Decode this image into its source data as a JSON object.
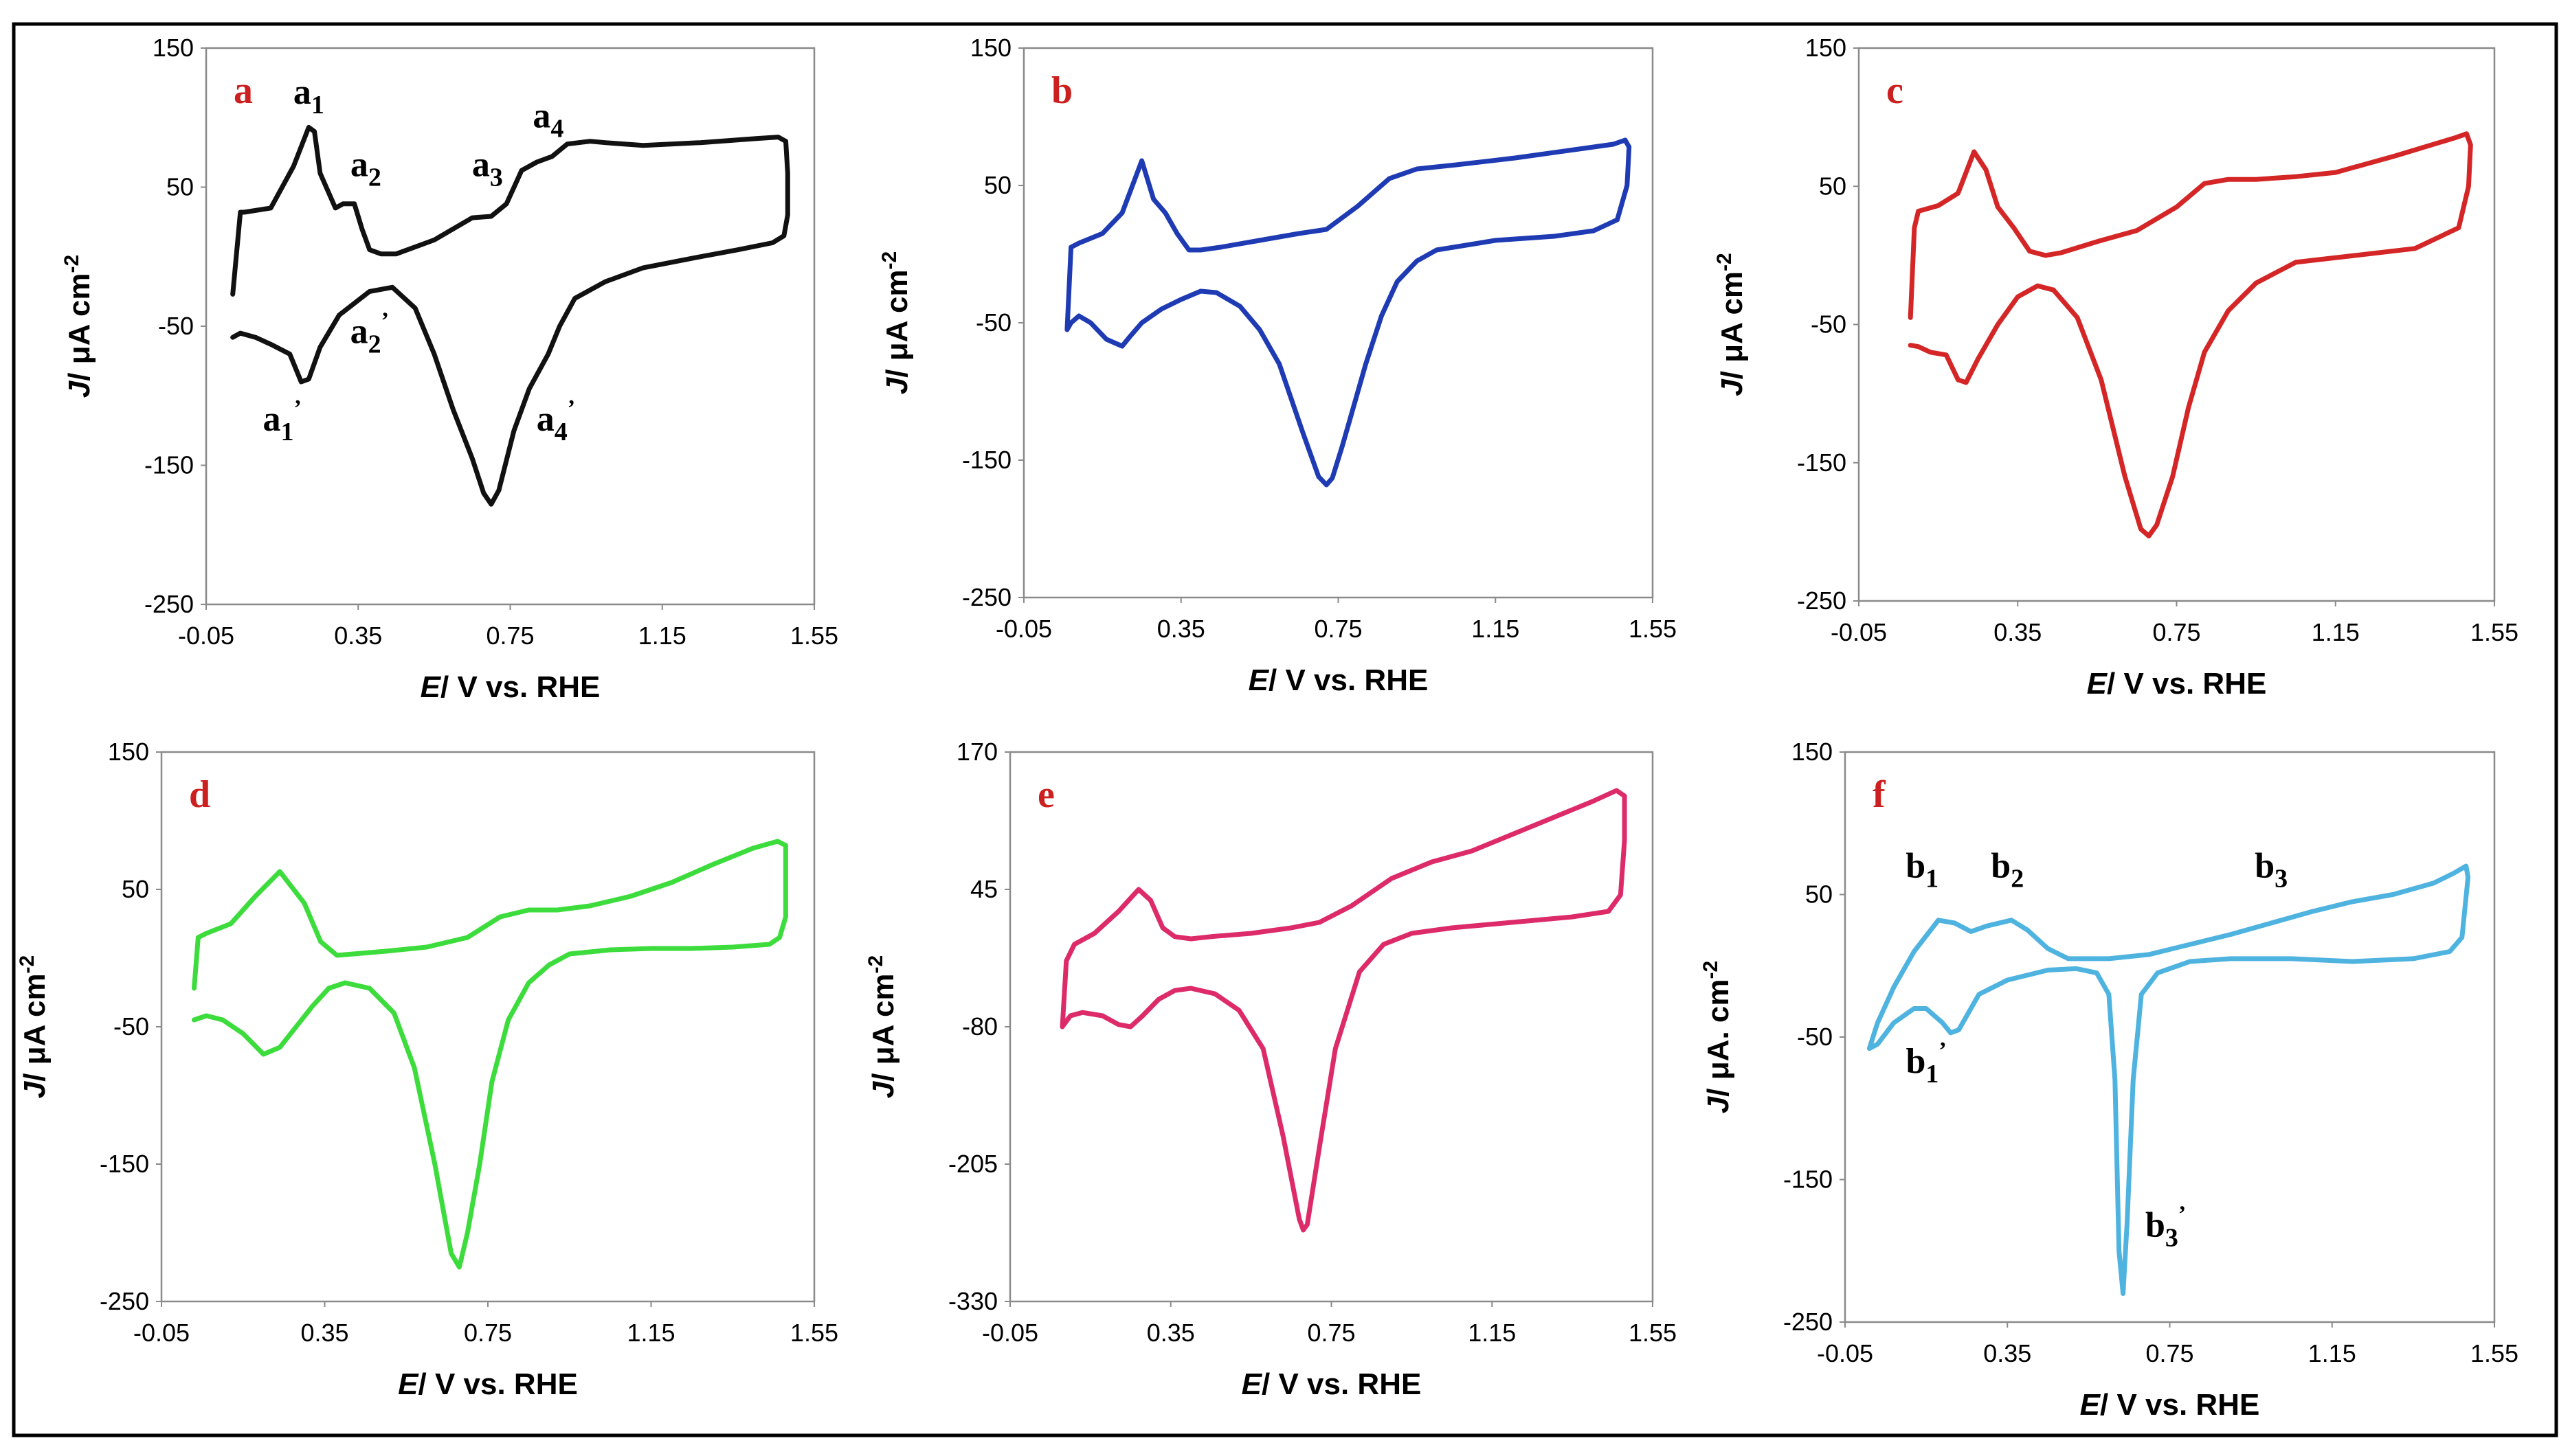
{
  "chart_data": [
    {
      "type": "line",
      "panel": "a",
      "color": "#111111",
      "xlabel_italic": "E",
      "xlabel_rest": "/ V vs. RHE",
      "ylabel_italic": "J",
      "ylabel_rest": "/ μA cm",
      "ylabel_sup": "-2",
      "xlim": [
        -0.05,
        1.55
      ],
      "ylim": [
        -250,
        150
      ],
      "x_ticks": [
        "-0.05",
        "0.35",
        "0.75",
        "1.15",
        "1.55"
      ],
      "y_ticks": [
        "150",
        "50",
        "-50",
        "-150",
        "-250"
      ],
      "annotations": [
        {
          "base": "a",
          "sub": "1",
          "sup": "",
          "x": 0.22,
          "y": 110
        },
        {
          "base": "a",
          "sub": "2",
          "sup": "",
          "x": 0.37,
          "y": 58
        },
        {
          "base": "a",
          "sub": "3",
          "sup": "",
          "x": 0.69,
          "y": 58
        },
        {
          "base": "a",
          "sub": "4",
          "sup": "",
          "x": 0.85,
          "y": 93
        },
        {
          "base": "a",
          "sub": "2",
          "sup": "’",
          "x": 0.38,
          "y": -62
        },
        {
          "base": "a",
          "sub": "1",
          "sup": "’",
          "x": 0.15,
          "y": -125
        },
        {
          "base": "a",
          "sub": "4",
          "sup": "’",
          "x": 0.87,
          "y": -125
        }
      ],
      "x": [
        0.02,
        0.04,
        0.05,
        0.12,
        0.18,
        0.22,
        0.235,
        0.25,
        0.29,
        0.31,
        0.34,
        0.36,
        0.38,
        0.41,
        0.45,
        0.55,
        0.65,
        0.7,
        0.74,
        0.78,
        0.82,
        0.86,
        0.9,
        0.96,
        1.0,
        1.1,
        1.25,
        1.4,
        1.455,
        1.475,
        1.48,
        1.48,
        1.47,
        1.44,
        1.35,
        1.25,
        1.1,
        1.0,
        0.92,
        0.88,
        0.85,
        0.8,
        0.76,
        0.72,
        0.7,
        0.68,
        0.65,
        0.6,
        0.55,
        0.5,
        0.44,
        0.38,
        0.3,
        0.25,
        0.22,
        0.2,
        0.17,
        0.12,
        0.08,
        0.04,
        0.02,
        0.02
      ],
      "y": [
        -27,
        32,
        32,
        35,
        65,
        93,
        90,
        60,
        35,
        38,
        38,
        20,
        5,
        2,
        2,
        12,
        28,
        29,
        38,
        62,
        68,
        72,
        81,
        83,
        82,
        80,
        82,
        85,
        86,
        83,
        60,
        30,
        15,
        10,
        5,
        0,
        -8,
        -18,
        -30,
        -50,
        -70,
        -95,
        -125,
        -168,
        -178,
        -170,
        -145,
        -110,
        -70,
        -37,
        -22,
        -25,
        -42,
        -65,
        -88,
        -90,
        -70,
        -63,
        -58,
        -55,
        -58,
        -58
      ]
    },
    {
      "type": "line",
      "panel": "b",
      "color": "#1f3bb3",
      "xlabel_italic": "E",
      "xlabel_rest": "/ V vs. RHE",
      "ylabel_italic": "J",
      "ylabel_rest": "/ μA cm",
      "ylabel_sup": "-2",
      "xlim": [
        -0.05,
        1.55
      ],
      "ylim": [
        -250,
        150
      ],
      "x_ticks": [
        "-0.05",
        "0.35",
        "0.75",
        "1.15",
        "1.55"
      ],
      "y_ticks": [
        "150",
        "50",
        "-50",
        "-150",
        "-250"
      ],
      "annotations": [],
      "x": [
        0.06,
        0.07,
        0.09,
        0.15,
        0.2,
        0.25,
        0.28,
        0.31,
        0.34,
        0.37,
        0.4,
        0.45,
        0.55,
        0.65,
        0.72,
        0.8,
        0.88,
        0.95,
        1.05,
        1.2,
        1.35,
        1.45,
        1.48,
        1.49,
        1.485,
        1.46,
        1.4,
        1.3,
        1.15,
        1.0,
        0.95,
        0.9,
        0.86,
        0.82,
        0.78,
        0.76,
        0.735,
        0.72,
        0.7,
        0.66,
        0.6,
        0.55,
        0.5,
        0.44,
        0.4,
        0.35,
        0.3,
        0.25,
        0.22,
        0.2,
        0.16,
        0.12,
        0.09,
        0.07,
        0.06
      ],
      "y": [
        -55,
        5,
        8,
        15,
        30,
        68,
        40,
        30,
        15,
        3,
        3,
        5,
        10,
        15,
        18,
        35,
        55,
        62,
        65,
        70,
        76,
        80,
        83,
        78,
        50,
        25,
        17,
        13,
        10,
        3,
        -5,
        -20,
        -45,
        -80,
        -120,
        -140,
        -163,
        -168,
        -162,
        -130,
        -80,
        -55,
        -38,
        -28,
        -27,
        -33,
        -40,
        -50,
        -60,
        -67,
        -62,
        -50,
        -45,
        -50,
        -55
      ]
    },
    {
      "type": "line",
      "panel": "c",
      "color": "#d42626",
      "xlabel_italic": "E",
      "xlabel_rest": "/ V vs. RHE",
      "ylabel_italic": "J",
      "ylabel_rest": "/ μA cm",
      "ylabel_sup": "-2",
      "xlim": [
        -0.05,
        1.55
      ],
      "ylim": [
        -250,
        150
      ],
      "x_ticks": [
        "-0.05",
        "0.35",
        "0.75",
        "1.15",
        "1.55"
      ],
      "y_ticks": [
        "150",
        "50",
        "-50",
        "-150",
        "-250"
      ],
      "annotations": [],
      "x": [
        0.08,
        0.09,
        0.1,
        0.15,
        0.2,
        0.24,
        0.27,
        0.3,
        0.34,
        0.38,
        0.42,
        0.46,
        0.55,
        0.65,
        0.75,
        0.82,
        0.88,
        0.95,
        1.05,
        1.15,
        1.3,
        1.45,
        1.48,
        1.49,
        1.485,
        1.46,
        1.35,
        1.2,
        1.05,
        0.95,
        0.88,
        0.82,
        0.78,
        0.74,
        0.7,
        0.68,
        0.66,
        0.62,
        0.56,
        0.5,
        0.44,
        0.4,
        0.35,
        0.3,
        0.25,
        0.22,
        0.2,
        0.17,
        0.13,
        0.1,
        0.08
      ],
      "y": [
        -45,
        20,
        32,
        36,
        45,
        75,
        62,
        35,
        20,
        3,
        0,
        2,
        10,
        18,
        35,
        52,
        55,
        55,
        57,
        60,
        72,
        85,
        88,
        80,
        50,
        20,
        5,
        0,
        -5,
        -20,
        -40,
        -70,
        -110,
        -160,
        -195,
        -203,
        -198,
        -160,
        -90,
        -45,
        -25,
        -22,
        -30,
        -50,
        -75,
        -92,
        -90,
        -72,
        -70,
        -66,
        -65
      ]
    },
    {
      "type": "line",
      "panel": "d",
      "color": "#3ddc3d",
      "xlabel_italic": "E",
      "xlabel_rest": "/ V vs. RHE",
      "ylabel_italic": "J",
      "ylabel_rest": "/ μA cm",
      "ylabel_sup": "-2",
      "xlim": [
        -0.05,
        1.55
      ],
      "ylim": [
        -250,
        150
      ],
      "x_ticks": [
        "-0.05",
        "0.35",
        "0.75",
        "1.15",
        "1.55"
      ],
      "y_ticks": [
        "150",
        "50",
        "-50",
        "-150",
        "-250"
      ],
      "annotations": [],
      "x": [
        0.03,
        0.04,
        0.06,
        0.12,
        0.18,
        0.24,
        0.3,
        0.34,
        0.38,
        0.42,
        0.5,
        0.6,
        0.7,
        0.78,
        0.85,
        0.92,
        1.0,
        1.1,
        1.2,
        1.3,
        1.4,
        1.46,
        1.48,
        1.48,
        1.465,
        1.44,
        1.35,
        1.25,
        1.15,
        1.05,
        0.95,
        0.9,
        0.85,
        0.8,
        0.76,
        0.73,
        0.7,
        0.68,
        0.66,
        0.62,
        0.57,
        0.52,
        0.46,
        0.4,
        0.36,
        0.32,
        0.28,
        0.24,
        0.2,
        0.15,
        0.1,
        0.06,
        0.03
      ],
      "y": [
        -22,
        15,
        18,
        25,
        45,
        63,
        40,
        12,
        2,
        3,
        5,
        8,
        15,
        30,
        35,
        35,
        38,
        45,
        55,
        68,
        80,
        85,
        82,
        30,
        15,
        10,
        8,
        7,
        7,
        6,
        3,
        -5,
        -18,
        -45,
        -90,
        -150,
        -200,
        -225,
        -215,
        -150,
        -80,
        -40,
        -22,
        -18,
        -22,
        -35,
        -50,
        -65,
        -70,
        -55,
        -45,
        -42,
        -45
      ]
    },
    {
      "type": "line",
      "panel": "e",
      "color": "#dd2b6a",
      "xlabel_italic": "E",
      "xlabel_rest": "/ V vs. RHE",
      "ylabel_italic": "J",
      "ylabel_rest": "/ μA cm",
      "ylabel_sup": "-2",
      "xlim": [
        -0.05,
        1.55
      ],
      "ylim": [
        -330,
        170
      ],
      "x_ticks": [
        "-0.05",
        "0.35",
        "0.75",
        "1.15",
        "1.55"
      ],
      "y_ticks": [
        "170",
        "45",
        "-80",
        "-205",
        "-330"
      ],
      "annotations": [],
      "x": [
        0.08,
        0.09,
        0.11,
        0.16,
        0.22,
        0.27,
        0.3,
        0.33,
        0.36,
        0.4,
        0.45,
        0.55,
        0.65,
        0.72,
        0.8,
        0.9,
        1.0,
        1.1,
        1.2,
        1.3,
        1.4,
        1.46,
        1.48,
        1.48,
        1.47,
        1.44,
        1.35,
        1.2,
        1.05,
        0.95,
        0.88,
        0.82,
        0.76,
        0.72,
        0.69,
        0.68,
        0.67,
        0.63,
        0.58,
        0.52,
        0.46,
        0.4,
        0.36,
        0.32,
        0.28,
        0.25,
        0.22,
        0.18,
        0.13,
        0.1,
        0.09,
        0.08
      ],
      "y": [
        -80,
        -20,
        -5,
        5,
        25,
        45,
        35,
        10,
        2,
        0,
        2,
        5,
        10,
        15,
        30,
        55,
        70,
        80,
        95,
        110,
        125,
        135,
        130,
        90,
        40,
        25,
        20,
        15,
        10,
        5,
        -5,
        -30,
        -100,
        -190,
        -260,
        -265,
        -255,
        -180,
        -100,
        -65,
        -50,
        -45,
        -47,
        -55,
        -70,
        -80,
        -78,
        -70,
        -67,
        -70,
        -75,
        -80
      ]
    },
    {
      "type": "line",
      "panel": "f",
      "color": "#4fb3e0",
      "xlabel_italic": "E",
      "xlabel_rest": "/ V vs. RHE",
      "ylabel_italic": "J",
      "ylabel_rest": "/ μA. cm",
      "ylabel_sup": "-2",
      "xlim": [
        -0.05,
        1.55
      ],
      "ylim": [
        -250,
        150
      ],
      "x_ticks": [
        "-0.05",
        "0.35",
        "0.75",
        "1.15",
        "1.55"
      ],
      "y_ticks": [
        "150",
        "50",
        "-50",
        "-150",
        "-250"
      ],
      "annotations": [
        {
          "base": "b",
          "sub": "1",
          "sup": "",
          "x": 0.14,
          "y": 62
        },
        {
          "base": "b",
          "sub": "2",
          "sup": "",
          "x": 0.35,
          "y": 62
        },
        {
          "base": "b",
          "sub": "3",
          "sup": "",
          "x": 1.0,
          "y": 62
        },
        {
          "base": "b",
          "sub": "1",
          "sup": "’",
          "x": 0.15,
          "y": -75
        },
        {
          "base": "b",
          "sub": "3",
          "sup": "’",
          "x": 0.74,
          "y": -190
        }
      ],
      "x": [
        0.01,
        0.03,
        0.07,
        0.12,
        0.18,
        0.22,
        0.26,
        0.3,
        0.36,
        0.4,
        0.45,
        0.5,
        0.6,
        0.7,
        0.8,
        0.9,
        1.0,
        1.1,
        1.2,
        1.3,
        1.4,
        1.45,
        1.48,
        1.485,
        1.47,
        1.44,
        1.35,
        1.2,
        1.05,
        0.9,
        0.8,
        0.72,
        0.68,
        0.66,
        0.645,
        0.635,
        0.625,
        0.615,
        0.6,
        0.57,
        0.52,
        0.45,
        0.35,
        0.28,
        0.25,
        0.23,
        0.21,
        0.19,
        0.15,
        0.12,
        0.07,
        0.03,
        0.01
      ],
      "y": [
        -58,
        -40,
        -15,
        10,
        32,
        30,
        24,
        28,
        32,
        25,
        12,
        5,
        5,
        8,
        15,
        22,
        30,
        38,
        45,
        50,
        58,
        65,
        70,
        62,
        20,
        10,
        5,
        3,
        5,
        5,
        3,
        -5,
        -20,
        -80,
        -180,
        -230,
        -200,
        -80,
        -20,
        -5,
        -2,
        -3,
        -10,
        -20,
        -35,
        -45,
        -47,
        -40,
        -30,
        -30,
        -40,
        -55,
        -58
      ]
    }
  ]
}
